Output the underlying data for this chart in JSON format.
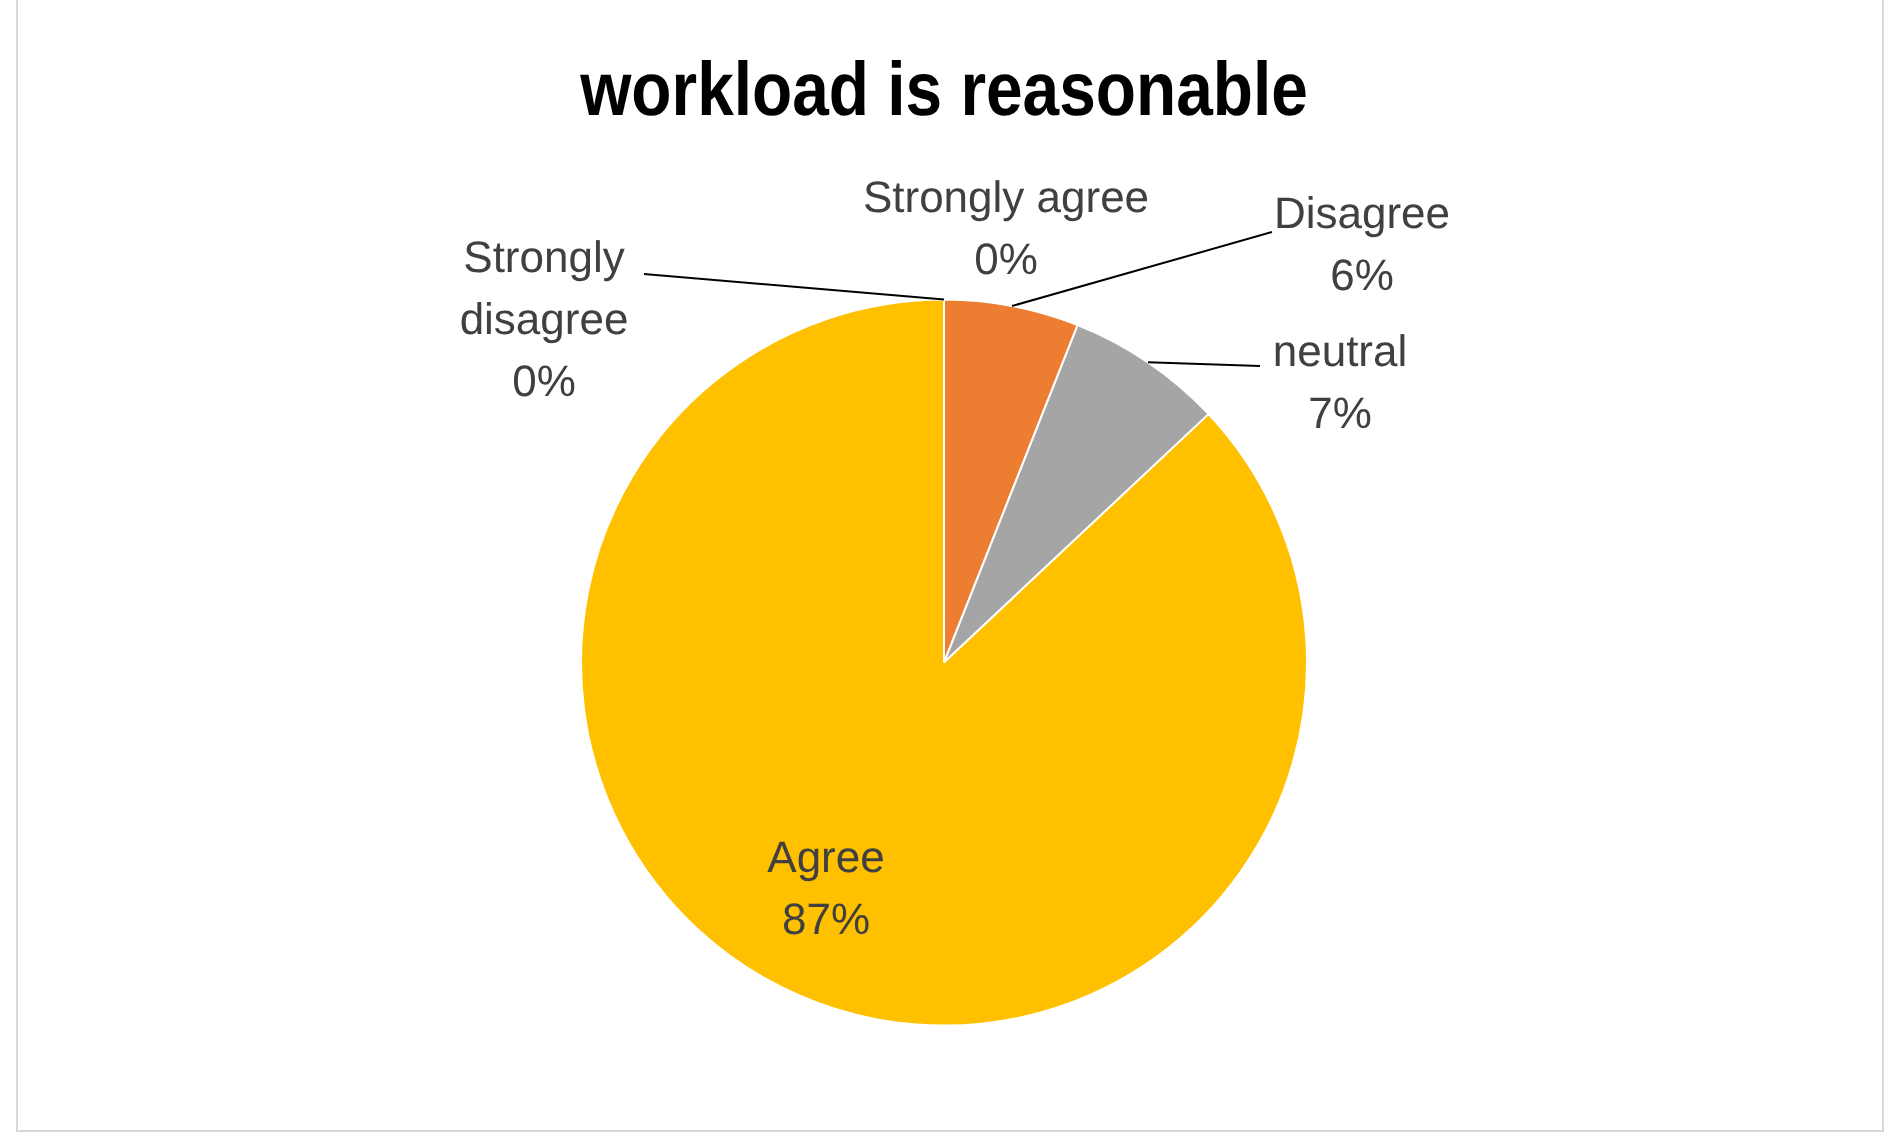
{
  "chart_data": {
    "type": "pie",
    "title": "workload is reasonable",
    "categories": [
      "Strongly agree",
      "Disagree",
      "neutral",
      "Agree",
      "Strongly disagree"
    ],
    "values": [
      0,
      6,
      7,
      87,
      0
    ],
    "colors": [
      "#4472c4",
      "#ed7d31",
      "#a5a5a5",
      "#ffc000",
      "#5b9bd5"
    ],
    "value_labels": [
      "0%",
      "6%",
      "7%",
      "87%",
      "0%"
    ],
    "legend": false
  }
}
